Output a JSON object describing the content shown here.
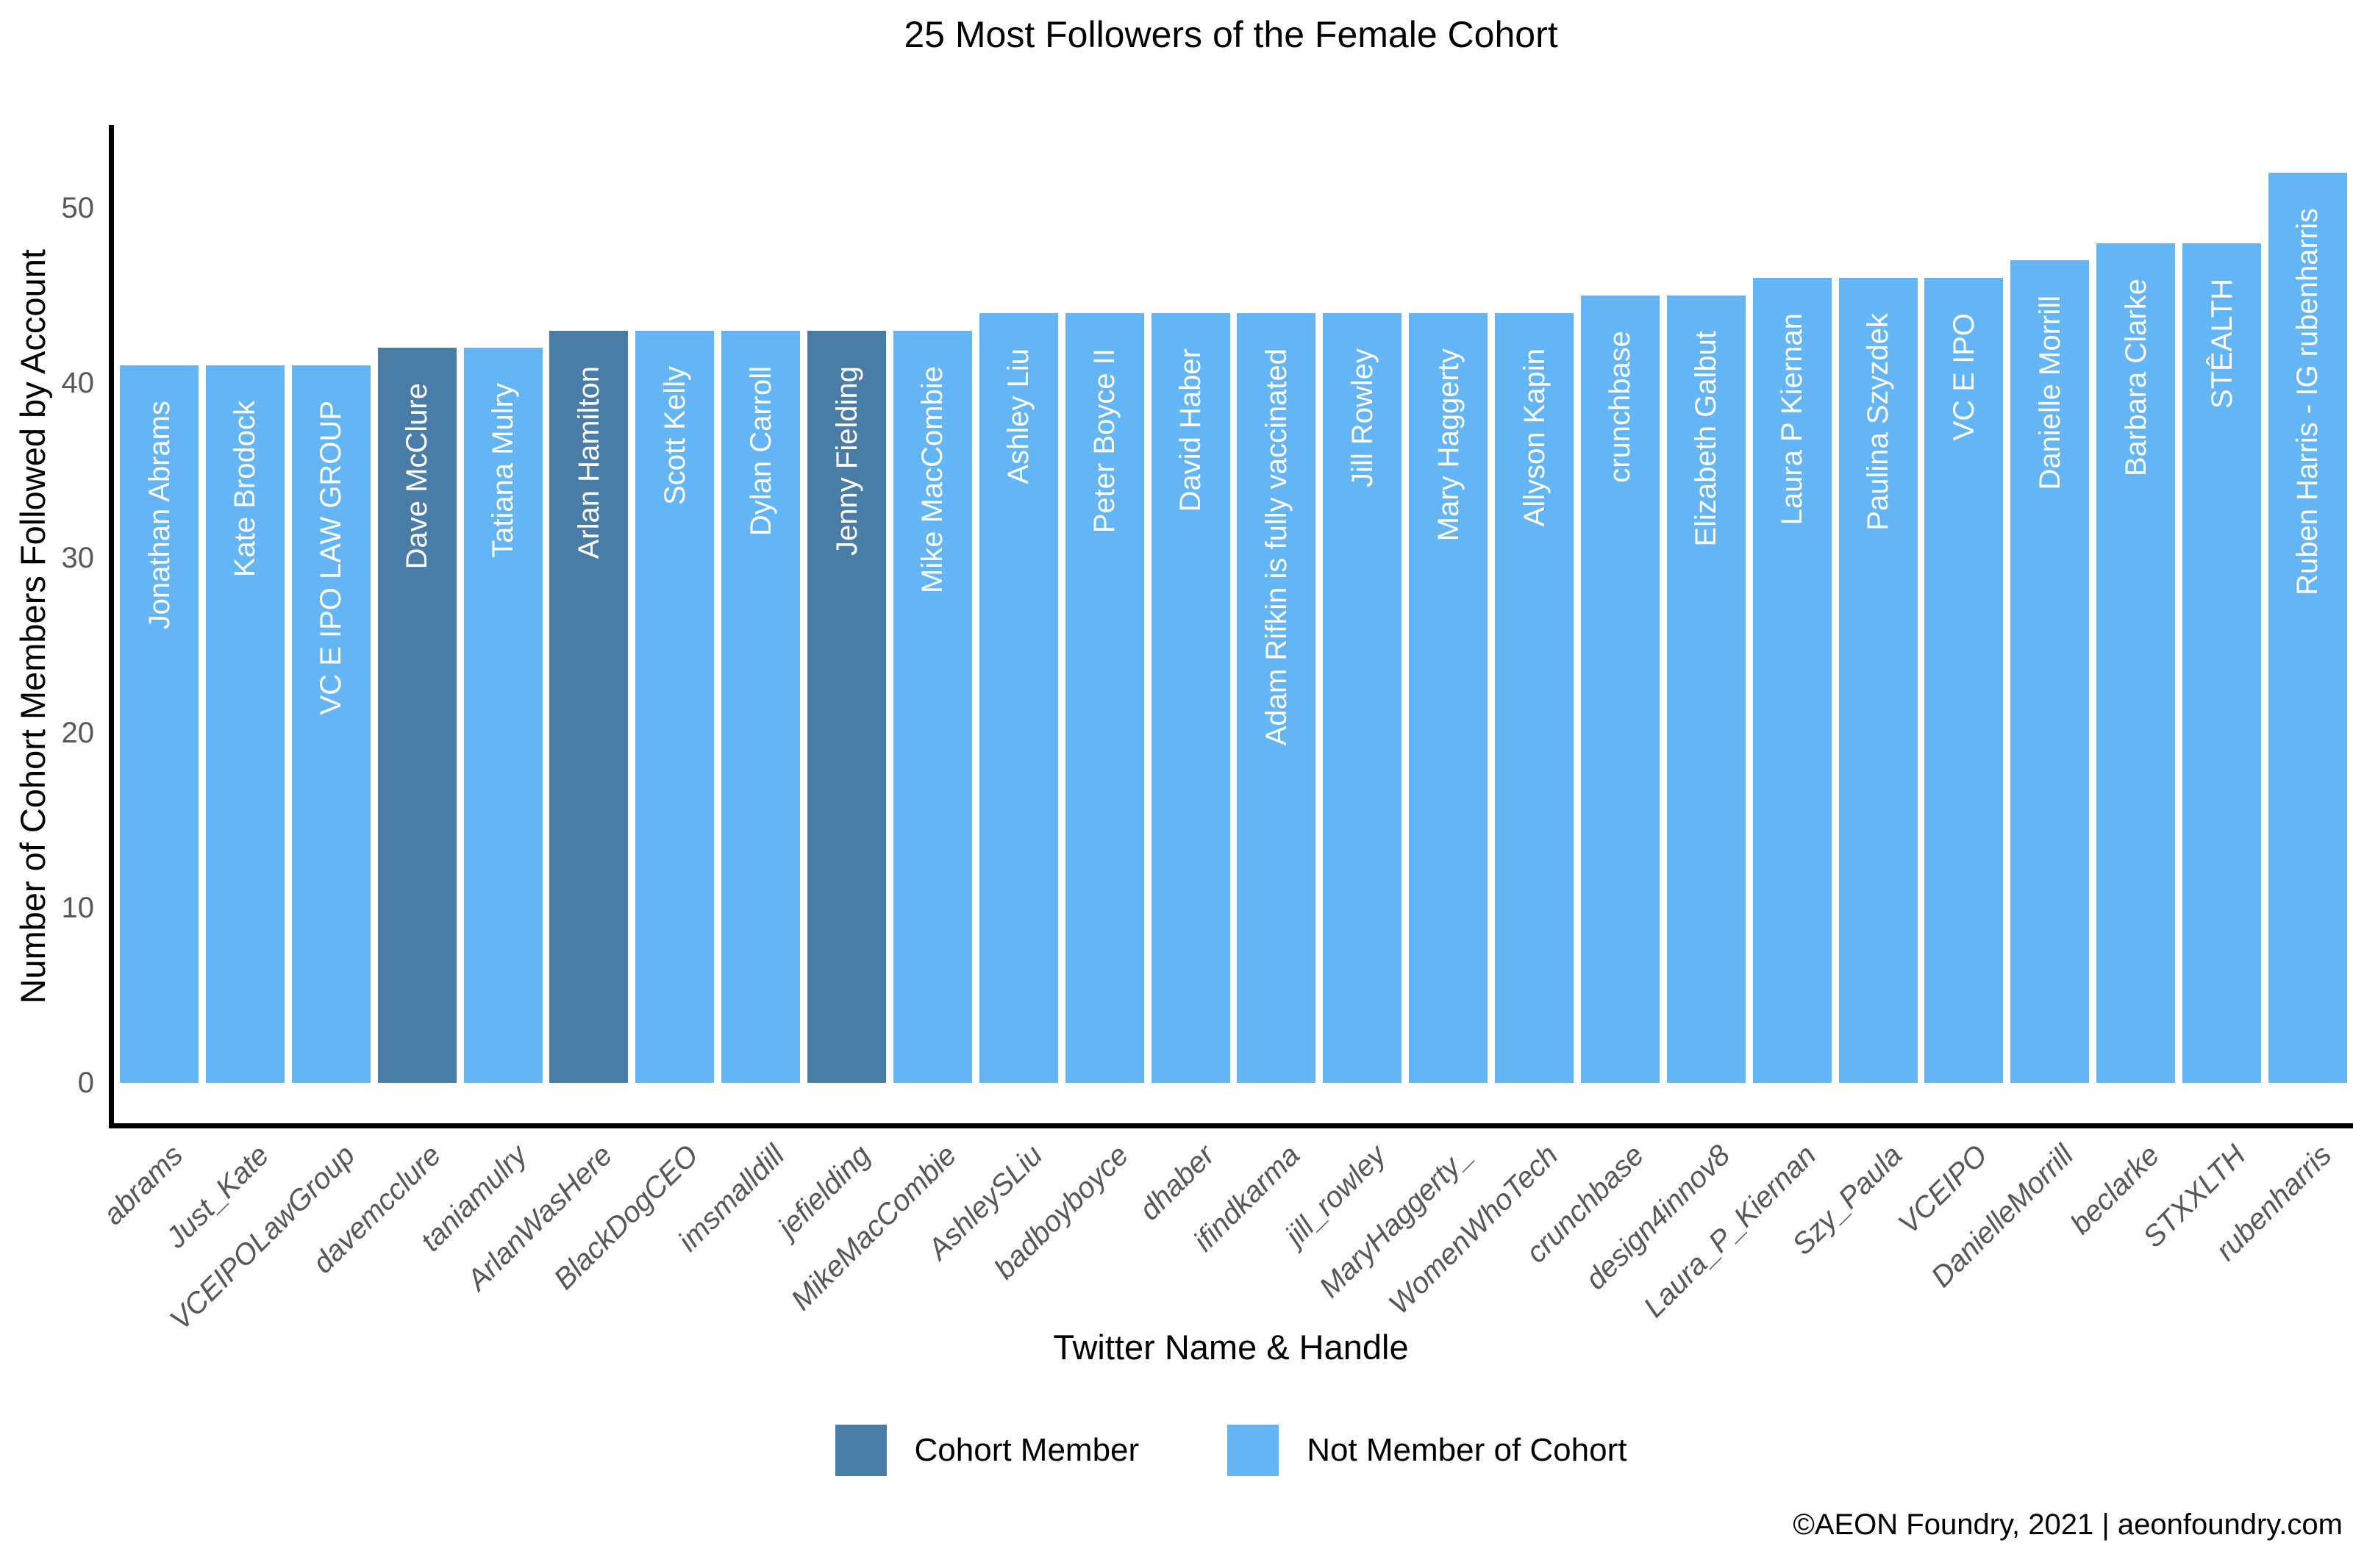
{
  "footer": {
    "text": "©AEON Foundry, 2021 | aeonfoundry.com"
  },
  "colors": {
    "cohort_member": "#4A7CA8",
    "non_member": "#64B5F6",
    "tick_text": "#575757",
    "bar_label_text": "#ffffff",
    "axis_spine": "#000000"
  },
  "chart_data": {
    "type": "bar",
    "title": "25 Most Followers of the Female Cohort",
    "xlabel": "Twitter Name & Handle",
    "ylabel": "Number of Cohort Members Followed by Account",
    "ylim": [
      0,
      55
    ],
    "yticks": [
      0,
      10,
      20,
      30,
      40,
      50
    ],
    "grid": false,
    "legend_position": "bottom-center",
    "legend": [
      {
        "label": "Cohort Member",
        "color": "#4A7CA8"
      },
      {
        "label": "Not Member of Cohort",
        "color": "#64B5F6"
      }
    ],
    "categories": [
      "abrams",
      "Just_Kate",
      "VCEIPOLawGroup",
      "davemcclure",
      "taniamulry",
      "ArlanWasHere",
      "BlackDogCEO",
      "imsmalldill",
      "jefielding",
      "MikeMacCombie",
      "AshleySLiu",
      "badboyboyce",
      "dhaber",
      "ifindkarma",
      "jill_rowley",
      "MaryHaggerty_",
      "WomenWhoTech",
      "crunchbase",
      "design4innov8",
      "Laura_P_Kiernan",
      "Szy_Paula",
      "VCEIPO",
      "DanielleMorrill",
      "beclarke",
      "STXXLTH",
      "rubenharris"
    ],
    "bars": [
      {
        "handle": "abrams",
        "name": "Jonathan Abrams",
        "value": 41,
        "member": false
      },
      {
        "handle": "Just_Kate",
        "name": "Kate Brodock",
        "value": 41,
        "member": false
      },
      {
        "handle": "VCEIPOLawGroup",
        "name": "VC Ε IPO LAW GROUP",
        "value": 41,
        "member": false
      },
      {
        "handle": "davemcclure",
        "name": "Dave McClure",
        "value": 42,
        "member": true
      },
      {
        "handle": "taniamulry",
        "name": "Tatiana Mulry",
        "value": 42,
        "member": false
      },
      {
        "handle": "ArlanWasHere",
        "name": "Arlan Hamilton",
        "value": 43,
        "member": true
      },
      {
        "handle": "BlackDogCEO",
        "name": "Scott Kelly",
        "value": 43,
        "member": false
      },
      {
        "handle": "imsmalldill",
        "name": "Dylan Carroll",
        "value": 43,
        "member": false
      },
      {
        "handle": "jefielding",
        "name": "Jenny Fielding",
        "value": 43,
        "member": true
      },
      {
        "handle": "MikeMacCombie",
        "name": "Mike MacCombie",
        "value": 43,
        "member": false
      },
      {
        "handle": "AshleySLiu",
        "name": "Ashley Liu",
        "value": 44,
        "member": false
      },
      {
        "handle": "badboyboyce",
        "name": "Peter Boyce II",
        "value": 44,
        "member": false
      },
      {
        "handle": "dhaber",
        "name": "David Haber",
        "value": 44,
        "member": false
      },
      {
        "handle": "ifindkarma",
        "name": "Adam Rifkin is fully vaccinated",
        "value": 44,
        "member": false
      },
      {
        "handle": "jill_rowley",
        "name": "Jill Rowley",
        "value": 44,
        "member": false
      },
      {
        "handle": "MaryHaggerty_",
        "name": "Mary Haggerty",
        "value": 44,
        "member": false
      },
      {
        "handle": "WomenWhoTech",
        "name": "Allyson Kapin",
        "value": 44,
        "member": false
      },
      {
        "handle": "crunchbase",
        "name": "crunchbase",
        "value": 45,
        "member": false
      },
      {
        "handle": "design4innov8",
        "name": "Elizabeth Galbut",
        "value": 45,
        "member": false
      },
      {
        "handle": "Laura_P_Kiernan",
        "name": "Laura P Kiernan",
        "value": 46,
        "member": false
      },
      {
        "handle": "Szy_Paula",
        "name": "Paulina Szyzdek",
        "value": 46,
        "member": false
      },
      {
        "handle": "VCEIPO",
        "name": "VC Ε IPO",
        "value": 46,
        "member": false
      },
      {
        "handle": "DanielleMorrill",
        "name": "Danielle Morrill",
        "value": 47,
        "member": false
      },
      {
        "handle": "beclarke",
        "name": "Barbara Clarke",
        "value": 48,
        "member": false
      },
      {
        "handle": "STXXLTH",
        "name": "STÊALTH",
        "value": 48,
        "member": false
      },
      {
        "handle": "rubenharris",
        "name": "Ruben Harris - IG rubenharris",
        "value": 52,
        "member": false
      }
    ]
  }
}
